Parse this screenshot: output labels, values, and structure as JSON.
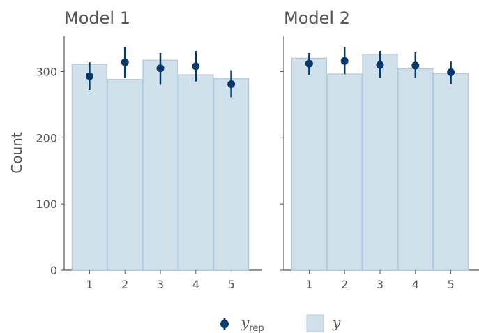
{
  "chart_data": {
    "type": "bar",
    "ylabel": "Count",
    "ylim": [
      0,
      352
    ],
    "yticks": [
      0,
      100,
      200,
      300
    ],
    "categories": [
      "1",
      "2",
      "3",
      "4",
      "5"
    ],
    "colors": {
      "bar_fill": "#d1e1ec",
      "bar_stroke": "#b3cde0",
      "point": "#03396c",
      "axis": "#555555"
    },
    "panels": [
      {
        "title": "Model 1",
        "y": [
          311,
          288,
          317,
          295,
          289
        ],
        "yrep_median": [
          293,
          314,
          305,
          308,
          281
        ],
        "yrep_low": [
          272,
          290,
          280,
          285,
          261
        ],
        "yrep_high": [
          314,
          337,
          328,
          331,
          302
        ]
      },
      {
        "title": "Model 2",
        "y": [
          320,
          296,
          326,
          304,
          297
        ],
        "yrep_median": [
          312,
          316,
          310,
          309,
          299
        ],
        "yrep_low": [
          295,
          296,
          290,
          290,
          281
        ],
        "yrep_high": [
          328,
          337,
          331,
          329,
          315
        ]
      }
    ],
    "legend": {
      "position": "bottom",
      "yrep_label": "y",
      "yrep_sub": "rep",
      "y_label": "y"
    }
  }
}
